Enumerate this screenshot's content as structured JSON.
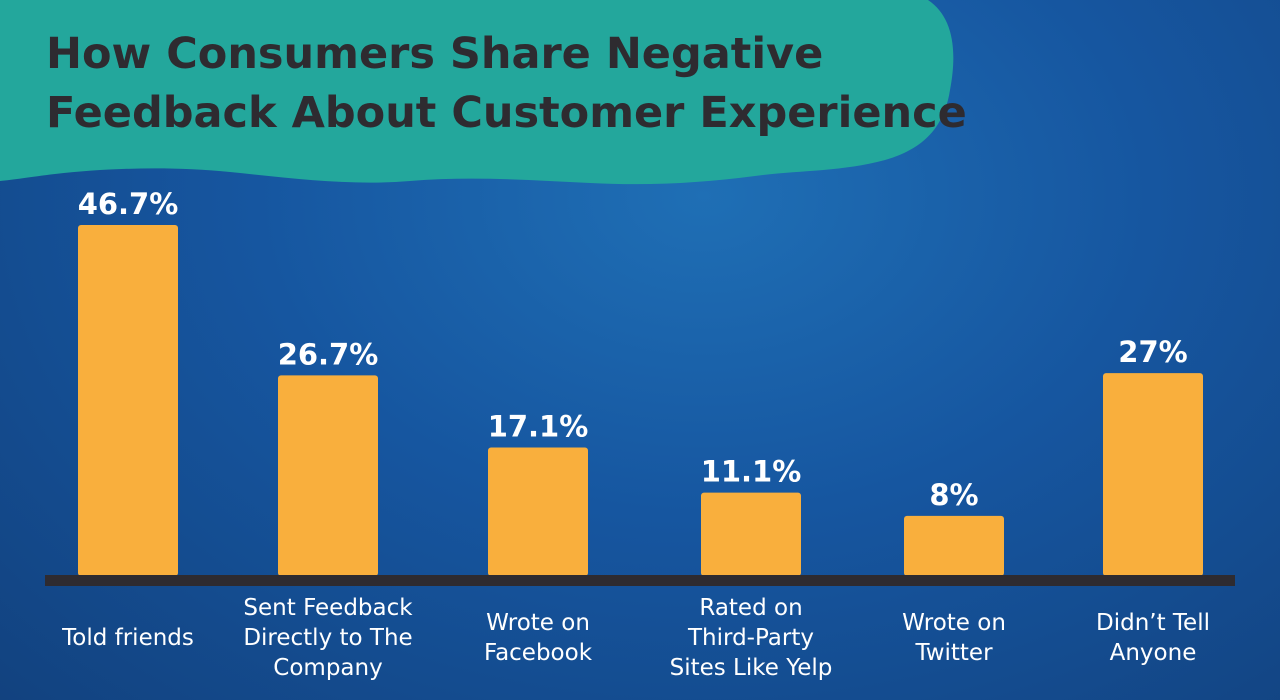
{
  "chart_data": {
    "type": "bar",
    "title_lines": [
      "How Consumers Share Negative",
      "Feedback About Customer Experience"
    ],
    "categories": [
      [
        "Told friends"
      ],
      [
        "Sent Feedback",
        "Directly to The",
        "Company"
      ],
      [
        "Wrote on",
        "Facebook"
      ],
      [
        "Rated on",
        "Third-Party",
        "Sites Like Yelp"
      ],
      [
        "Wrote on",
        "Twitter"
      ],
      [
        "Didn’t Tell",
        "Anyone"
      ]
    ],
    "values": [
      46.7,
      26.7,
      17.1,
      11.1,
      8,
      27
    ],
    "value_labels": [
      "46.7%",
      "26.7%",
      "17.1%",
      "11.1%",
      "8%",
      "27%"
    ],
    "unit": "%",
    "grid": false,
    "legend": "none"
  },
  "colors": {
    "bar": "#f9af3d",
    "axis": "#2e2b30",
    "title_band": "#23a79c",
    "title_text": "#2e2b30",
    "label_text": "#ffffff"
  }
}
